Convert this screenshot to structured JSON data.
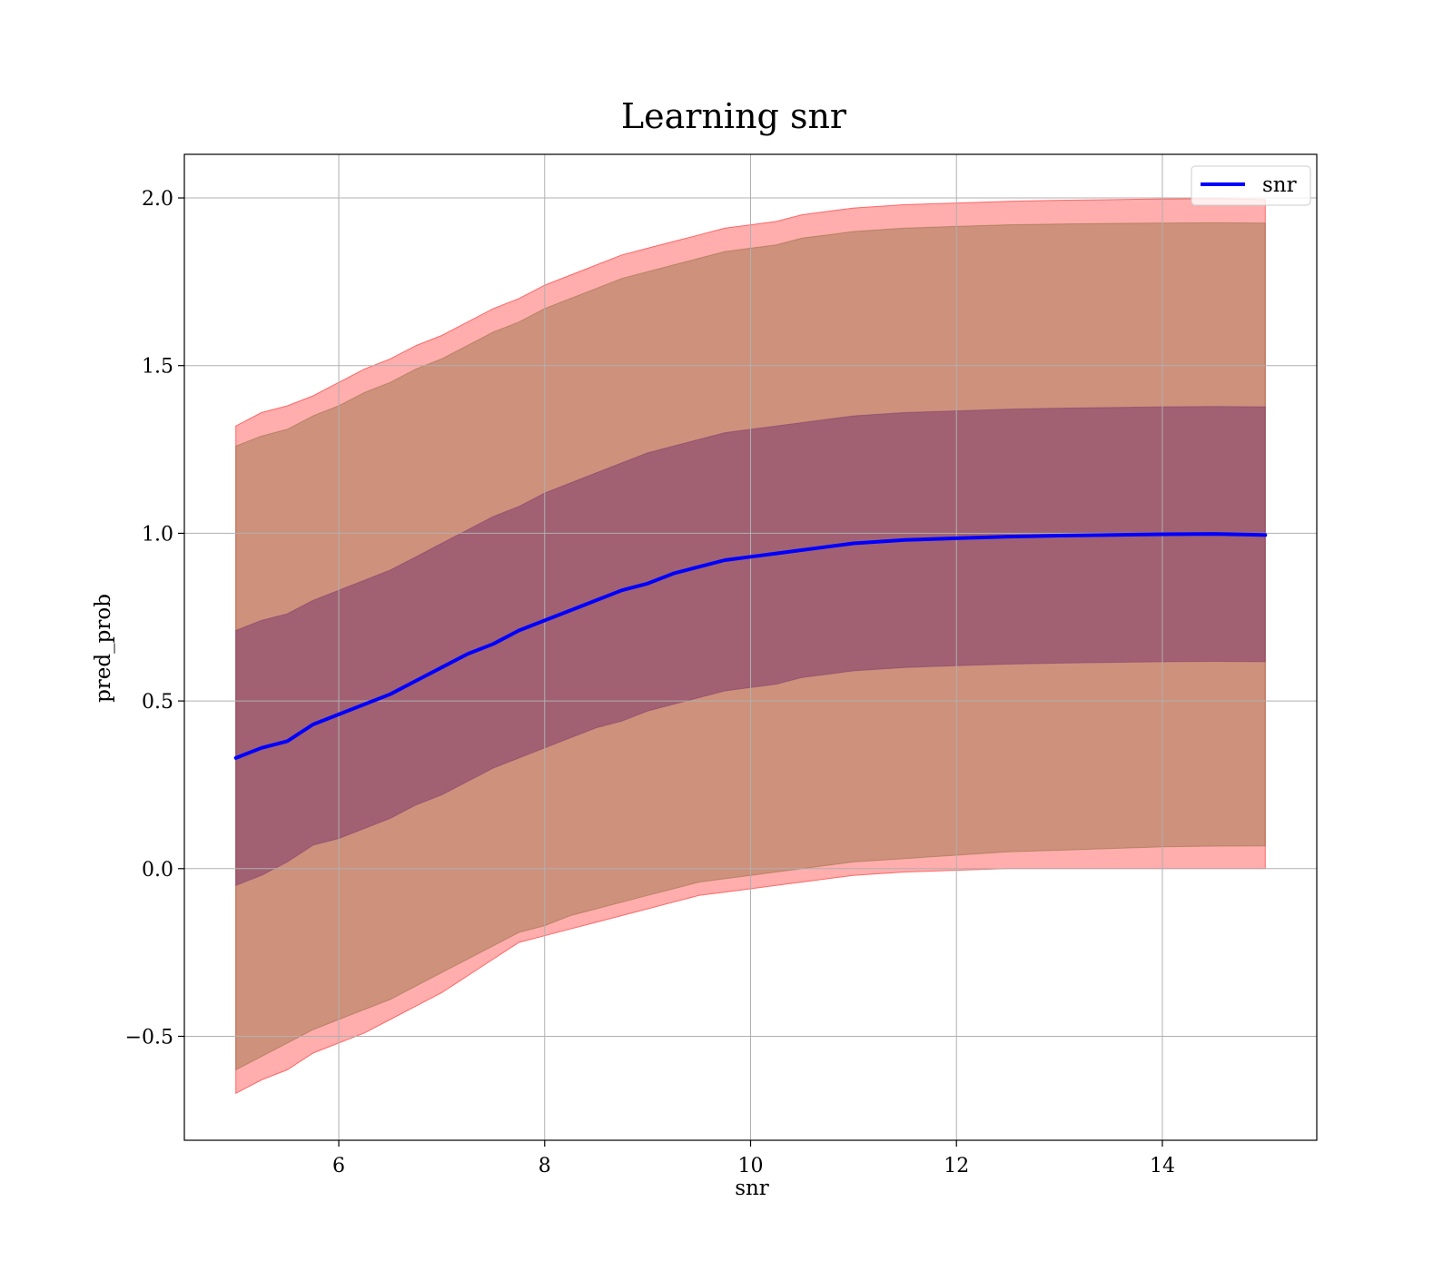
{
  "chart_data": {
    "type": "line",
    "title": "Learning snr",
    "xlabel": "snr",
    "ylabel": "pred_prob",
    "xlim": [
      4.5,
      15.5
    ],
    "ylim": [
      -0.81,
      2.13
    ],
    "grid": true,
    "legend_position": "top-right",
    "x_ticks": [
      6,
      8,
      10,
      12,
      14
    ],
    "x_tick_labels": [
      "6",
      "8",
      "10",
      "12",
      "14"
    ],
    "y_ticks": [
      -0.5,
      0.0,
      0.5,
      1.0,
      1.5,
      2.0
    ],
    "y_tick_labels": [
      "−0.5",
      "0.0",
      "0.5",
      "1.0",
      "1.5",
      "2.0"
    ],
    "series": [
      {
        "name": "snr",
        "color": "#0000ff",
        "x": [
          5.0,
          5.25,
          5.5,
          5.75,
          6.0,
          6.25,
          6.5,
          6.75,
          7.0,
          7.25,
          7.5,
          7.75,
          8.0,
          8.25,
          8.5,
          8.75,
          9.0,
          9.25,
          9.5,
          9.75,
          10.0,
          10.25,
          10.5,
          10.75,
          11.0,
          11.5,
          12.0,
          12.5,
          13.0,
          13.5,
          14.0,
          14.5,
          15.0
        ],
        "y": [
          0.33,
          0.36,
          0.38,
          0.43,
          0.46,
          0.49,
          0.52,
          0.56,
          0.6,
          0.64,
          0.67,
          0.71,
          0.74,
          0.77,
          0.8,
          0.83,
          0.85,
          0.88,
          0.9,
          0.92,
          0.93,
          0.94,
          0.95,
          0.96,
          0.97,
          0.98,
          0.985,
          0.99,
          0.993,
          0.995,
          0.997,
          0.998,
          0.995
        ]
      }
    ],
    "bands": [
      {
        "fill": "#ff0000",
        "opacity": 0.32,
        "x": [
          5.0,
          5.25,
          5.5,
          5.75,
          6.0,
          6.25,
          6.5,
          6.75,
          7.0,
          7.25,
          7.5,
          7.75,
          8.0,
          8.25,
          8.5,
          8.75,
          9.0,
          9.25,
          9.5,
          9.75,
          10.0,
          10.25,
          10.5,
          10.75,
          11.0,
          11.5,
          12.0,
          12.5,
          13.0,
          13.5,
          14.0,
          14.5,
          15.0
        ],
        "lower": [
          -0.67,
          -0.63,
          -0.6,
          -0.55,
          -0.52,
          -0.49,
          -0.45,
          -0.41,
          -0.37,
          -0.32,
          -0.27,
          -0.22,
          -0.2,
          -0.18,
          -0.16,
          -0.14,
          -0.12,
          -0.1,
          -0.08,
          -0.07,
          -0.06,
          -0.05,
          -0.04,
          -0.03,
          -0.02,
          -0.01,
          -0.005,
          0.0,
          0.0,
          0.0,
          0.0,
          0.0,
          0.0
        ],
        "upper": [
          1.32,
          1.36,
          1.38,
          1.41,
          1.45,
          1.49,
          1.52,
          1.56,
          1.59,
          1.63,
          1.67,
          1.7,
          1.74,
          1.77,
          1.8,
          1.83,
          1.85,
          1.87,
          1.89,
          1.91,
          1.92,
          1.93,
          1.95,
          1.96,
          1.97,
          1.98,
          1.985,
          1.99,
          1.993,
          1.995,
          1.997,
          1.998,
          1.995
        ]
      },
      {
        "fill": "#8b6b3a",
        "opacity": 0.42,
        "x": [
          5.0,
          5.25,
          5.5,
          5.75,
          6.0,
          6.25,
          6.5,
          6.75,
          7.0,
          7.25,
          7.5,
          7.75,
          8.0,
          8.25,
          8.5,
          8.75,
          9.0,
          9.25,
          9.5,
          9.75,
          10.0,
          10.25,
          10.5,
          10.75,
          11.0,
          11.5,
          12.0,
          12.5,
          13.0,
          13.5,
          14.0,
          14.5,
          15.0
        ],
        "lower": [
          -0.6,
          -0.56,
          -0.52,
          -0.48,
          -0.45,
          -0.42,
          -0.39,
          -0.35,
          -0.31,
          -0.27,
          -0.23,
          -0.19,
          -0.17,
          -0.14,
          -0.12,
          -0.1,
          -0.08,
          -0.06,
          -0.04,
          -0.03,
          -0.02,
          -0.01,
          0.0,
          0.01,
          0.02,
          0.03,
          0.04,
          0.05,
          0.055,
          0.06,
          0.065,
          0.067,
          0.068
        ],
        "upper": [
          1.26,
          1.29,
          1.31,
          1.35,
          1.38,
          1.42,
          1.45,
          1.49,
          1.52,
          1.56,
          1.6,
          1.63,
          1.67,
          1.7,
          1.73,
          1.76,
          1.78,
          1.8,
          1.82,
          1.84,
          1.85,
          1.86,
          1.88,
          1.89,
          1.9,
          1.91,
          1.915,
          1.92,
          1.922,
          1.924,
          1.925,
          1.926,
          1.925
        ]
      },
      {
        "fill": "#7b3a6b",
        "opacity": 0.55,
        "x": [
          5.0,
          5.25,
          5.5,
          5.75,
          6.0,
          6.25,
          6.5,
          6.75,
          7.0,
          7.25,
          7.5,
          7.75,
          8.0,
          8.25,
          8.5,
          8.75,
          9.0,
          9.25,
          9.5,
          9.75,
          10.0,
          10.25,
          10.5,
          10.75,
          11.0,
          11.5,
          12.0,
          12.5,
          13.0,
          13.5,
          14.0,
          14.5,
          15.0
        ],
        "lower": [
          -0.05,
          -0.02,
          0.02,
          0.07,
          0.09,
          0.12,
          0.15,
          0.19,
          0.22,
          0.26,
          0.3,
          0.33,
          0.36,
          0.39,
          0.42,
          0.44,
          0.47,
          0.49,
          0.51,
          0.53,
          0.54,
          0.55,
          0.57,
          0.58,
          0.59,
          0.6,
          0.605,
          0.61,
          0.613,
          0.615,
          0.617,
          0.618,
          0.617
        ],
        "upper": [
          0.71,
          0.74,
          0.76,
          0.8,
          0.83,
          0.86,
          0.89,
          0.93,
          0.97,
          1.01,
          1.05,
          1.08,
          1.12,
          1.15,
          1.18,
          1.21,
          1.24,
          1.26,
          1.28,
          1.3,
          1.31,
          1.32,
          1.33,
          1.34,
          1.35,
          1.36,
          1.365,
          1.37,
          1.373,
          1.375,
          1.377,
          1.378,
          1.377
        ]
      }
    ]
  }
}
